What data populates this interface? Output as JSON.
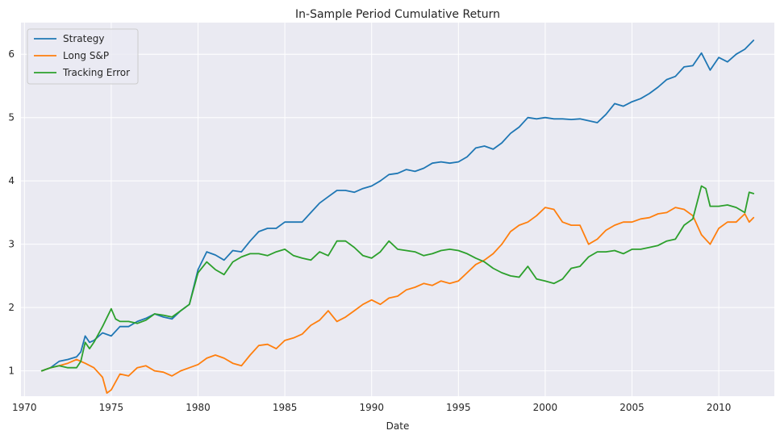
{
  "chart_data": {
    "type": "line",
    "title": "In-Sample Period Cumulative Return",
    "xlabel": "Date",
    "ylabel": "",
    "xlim": [
      1969.8,
      2013.2
    ],
    "ylim": [
      0.6,
      6.5
    ],
    "x_ticks": [
      1970,
      1975,
      1980,
      1985,
      1990,
      1995,
      2000,
      2005,
      2010
    ],
    "y_ticks": [
      1,
      2,
      3,
      4,
      5,
      6
    ],
    "grid": true,
    "legend_position": "top-left",
    "background_color": "#EAEAF2",
    "series": [
      {
        "name": "Strategy",
        "color": "#1f77b4",
        "points": [
          [
            1971.0,
            1.0
          ],
          [
            1971.5,
            1.05
          ],
          [
            1972.0,
            1.15
          ],
          [
            1972.5,
            1.18
          ],
          [
            1973.0,
            1.22
          ],
          [
            1973.25,
            1.3
          ],
          [
            1973.5,
            1.55
          ],
          [
            1973.75,
            1.45
          ],
          [
            1974.0,
            1.48
          ],
          [
            1974.5,
            1.6
          ],
          [
            1975.0,
            1.55
          ],
          [
            1975.5,
            1.7
          ],
          [
            1976.0,
            1.7
          ],
          [
            1976.5,
            1.78
          ],
          [
            1977.0,
            1.83
          ],
          [
            1977.5,
            1.9
          ],
          [
            1978.0,
            1.85
          ],
          [
            1978.5,
            1.82
          ],
          [
            1979.0,
            1.95
          ],
          [
            1979.5,
            2.05
          ],
          [
            1980.0,
            2.6
          ],
          [
            1980.5,
            2.88
          ],
          [
            1981.0,
            2.83
          ],
          [
            1981.5,
            2.75
          ],
          [
            1982.0,
            2.9
          ],
          [
            1982.5,
            2.88
          ],
          [
            1983.0,
            3.05
          ],
          [
            1983.5,
            3.2
          ],
          [
            1984.0,
            3.25
          ],
          [
            1984.5,
            3.25
          ],
          [
            1985.0,
            3.35
          ],
          [
            1985.5,
            3.35
          ],
          [
            1986.0,
            3.35
          ],
          [
            1986.5,
            3.5
          ],
          [
            1987.0,
            3.65
          ],
          [
            1987.5,
            3.75
          ],
          [
            1988.0,
            3.85
          ],
          [
            1988.5,
            3.85
          ],
          [
            1989.0,
            3.82
          ],
          [
            1989.5,
            3.88
          ],
          [
            1990.0,
            3.92
          ],
          [
            1990.5,
            4.0
          ],
          [
            1991.0,
            4.1
          ],
          [
            1991.5,
            4.12
          ],
          [
            1992.0,
            4.18
          ],
          [
            1992.5,
            4.15
          ],
          [
            1993.0,
            4.2
          ],
          [
            1993.5,
            4.28
          ],
          [
            1994.0,
            4.3
          ],
          [
            1994.5,
            4.28
          ],
          [
            1995.0,
            4.3
          ],
          [
            1995.5,
            4.38
          ],
          [
            1996.0,
            4.52
          ],
          [
            1996.5,
            4.55
          ],
          [
            1997.0,
            4.5
          ],
          [
            1997.5,
            4.6
          ],
          [
            1998.0,
            4.75
          ],
          [
            1998.5,
            4.85
          ],
          [
            1999.0,
            5.0
          ],
          [
            1999.5,
            4.98
          ],
          [
            2000.0,
            5.0
          ],
          [
            2000.5,
            4.98
          ],
          [
            2001.0,
            4.98
          ],
          [
            2001.5,
            4.97
          ],
          [
            2002.0,
            4.98
          ],
          [
            2002.5,
            4.95
          ],
          [
            2003.0,
            4.92
          ],
          [
            2003.5,
            5.05
          ],
          [
            2004.0,
            5.22
          ],
          [
            2004.5,
            5.18
          ],
          [
            2005.0,
            5.25
          ],
          [
            2005.5,
            5.3
          ],
          [
            2006.0,
            5.38
          ],
          [
            2006.5,
            5.48
          ],
          [
            2007.0,
            5.6
          ],
          [
            2007.5,
            5.65
          ],
          [
            2008.0,
            5.8
          ],
          [
            2008.5,
            5.82
          ],
          [
            2009.0,
            6.02
          ],
          [
            2009.5,
            5.75
          ],
          [
            2010.0,
            5.95
          ],
          [
            2010.5,
            5.88
          ],
          [
            2011.0,
            6.0
          ],
          [
            2011.5,
            6.08
          ],
          [
            2012.0,
            6.22
          ]
        ]
      },
      {
        "name": "Long S&P",
        "color": "#ff7f0e",
        "points": [
          [
            1971.0,
            1.0
          ],
          [
            1971.5,
            1.05
          ],
          [
            1972.0,
            1.08
          ],
          [
            1972.5,
            1.12
          ],
          [
            1973.0,
            1.18
          ],
          [
            1973.5,
            1.12
          ],
          [
            1974.0,
            1.05
          ],
          [
            1974.5,
            0.9
          ],
          [
            1974.75,
            0.65
          ],
          [
            1975.0,
            0.7
          ],
          [
            1975.5,
            0.95
          ],
          [
            1976.0,
            0.92
          ],
          [
            1976.5,
            1.05
          ],
          [
            1977.0,
            1.08
          ],
          [
            1977.5,
            1.0
          ],
          [
            1978.0,
            0.98
          ],
          [
            1978.5,
            0.92
          ],
          [
            1979.0,
            1.0
          ],
          [
            1979.5,
            1.05
          ],
          [
            1980.0,
            1.1
          ],
          [
            1980.5,
            1.2
          ],
          [
            1981.0,
            1.25
          ],
          [
            1981.5,
            1.2
          ],
          [
            1982.0,
            1.12
          ],
          [
            1982.5,
            1.08
          ],
          [
            1983.0,
            1.25
          ],
          [
            1983.5,
            1.4
          ],
          [
            1984.0,
            1.42
          ],
          [
            1984.5,
            1.35
          ],
          [
            1985.0,
            1.48
          ],
          [
            1985.5,
            1.52
          ],
          [
            1986.0,
            1.58
          ],
          [
            1986.5,
            1.72
          ],
          [
            1987.0,
            1.8
          ],
          [
            1987.5,
            1.95
          ],
          [
            1988.0,
            1.78
          ],
          [
            1988.5,
            1.85
          ],
          [
            1989.0,
            1.95
          ],
          [
            1989.5,
            2.05
          ],
          [
            1990.0,
            2.12
          ],
          [
            1990.5,
            2.05
          ],
          [
            1991.0,
            2.15
          ],
          [
            1991.5,
            2.18
          ],
          [
            1992.0,
            2.28
          ],
          [
            1992.5,
            2.32
          ],
          [
            1993.0,
            2.38
          ],
          [
            1993.5,
            2.35
          ],
          [
            1994.0,
            2.42
          ],
          [
            1994.5,
            2.38
          ],
          [
            1995.0,
            2.42
          ],
          [
            1995.5,
            2.55
          ],
          [
            1996.0,
            2.68
          ],
          [
            1996.5,
            2.75
          ],
          [
            1997.0,
            2.85
          ],
          [
            1997.5,
            3.0
          ],
          [
            1998.0,
            3.2
          ],
          [
            1998.5,
            3.3
          ],
          [
            1999.0,
            3.35
          ],
          [
            1999.5,
            3.45
          ],
          [
            2000.0,
            3.58
          ],
          [
            2000.5,
            3.55
          ],
          [
            2001.0,
            3.35
          ],
          [
            2001.5,
            3.3
          ],
          [
            2002.0,
            3.3
          ],
          [
            2002.5,
            3.0
          ],
          [
            2003.0,
            3.08
          ],
          [
            2003.5,
            3.22
          ],
          [
            2004.0,
            3.3
          ],
          [
            2004.5,
            3.35
          ],
          [
            2005.0,
            3.35
          ],
          [
            2005.5,
            3.4
          ],
          [
            2006.0,
            3.42
          ],
          [
            2006.5,
            3.48
          ],
          [
            2007.0,
            3.5
          ],
          [
            2007.5,
            3.58
          ],
          [
            2008.0,
            3.55
          ],
          [
            2008.5,
            3.45
          ],
          [
            2009.0,
            3.15
          ],
          [
            2009.5,
            3.0
          ],
          [
            2010.0,
            3.25
          ],
          [
            2010.5,
            3.35
          ],
          [
            2011.0,
            3.35
          ],
          [
            2011.5,
            3.48
          ],
          [
            2011.75,
            3.35
          ],
          [
            2012.0,
            3.42
          ]
        ]
      },
      {
        "name": "Tracking Error",
        "color": "#2ca02c",
        "points": [
          [
            1971.0,
            1.0
          ],
          [
            1971.5,
            1.05
          ],
          [
            1972.0,
            1.08
          ],
          [
            1972.5,
            1.05
          ],
          [
            1973.0,
            1.05
          ],
          [
            1973.25,
            1.15
          ],
          [
            1973.5,
            1.45
          ],
          [
            1973.75,
            1.35
          ],
          [
            1974.0,
            1.45
          ],
          [
            1974.5,
            1.7
          ],
          [
            1975.0,
            1.98
          ],
          [
            1975.25,
            1.82
          ],
          [
            1975.5,
            1.78
          ],
          [
            1976.0,
            1.78
          ],
          [
            1976.5,
            1.75
          ],
          [
            1977.0,
            1.8
          ],
          [
            1977.5,
            1.9
          ],
          [
            1978.0,
            1.88
          ],
          [
            1978.5,
            1.85
          ],
          [
            1979.0,
            1.95
          ],
          [
            1979.5,
            2.05
          ],
          [
            1980.0,
            2.55
          ],
          [
            1980.5,
            2.72
          ],
          [
            1981.0,
            2.6
          ],
          [
            1981.5,
            2.52
          ],
          [
            1982.0,
            2.72
          ],
          [
            1982.5,
            2.8
          ],
          [
            1983.0,
            2.85
          ],
          [
            1983.5,
            2.85
          ],
          [
            1984.0,
            2.82
          ],
          [
            1984.5,
            2.88
          ],
          [
            1985.0,
            2.92
          ],
          [
            1985.5,
            2.82
          ],
          [
            1986.0,
            2.78
          ],
          [
            1986.5,
            2.75
          ],
          [
            1987.0,
            2.88
          ],
          [
            1987.5,
            2.82
          ],
          [
            1988.0,
            3.05
          ],
          [
            1988.5,
            3.05
          ],
          [
            1989.0,
            2.95
          ],
          [
            1989.5,
            2.82
          ],
          [
            1990.0,
            2.78
          ],
          [
            1990.5,
            2.88
          ],
          [
            1991.0,
            3.05
          ],
          [
            1991.5,
            2.92
          ],
          [
            1992.0,
            2.9
          ],
          [
            1992.5,
            2.88
          ],
          [
            1993.0,
            2.82
          ],
          [
            1993.5,
            2.85
          ],
          [
            1994.0,
            2.9
          ],
          [
            1994.5,
            2.92
          ],
          [
            1995.0,
            2.9
          ],
          [
            1995.5,
            2.85
          ],
          [
            1996.0,
            2.78
          ],
          [
            1996.5,
            2.72
          ],
          [
            1997.0,
            2.62
          ],
          [
            1997.5,
            2.55
          ],
          [
            1998.0,
            2.5
          ],
          [
            1998.5,
            2.48
          ],
          [
            1999.0,
            2.65
          ],
          [
            1999.5,
            2.45
          ],
          [
            2000.0,
            2.42
          ],
          [
            2000.5,
            2.38
          ],
          [
            2001.0,
            2.45
          ],
          [
            2001.5,
            2.62
          ],
          [
            2002.0,
            2.65
          ],
          [
            2002.5,
            2.8
          ],
          [
            2003.0,
            2.88
          ],
          [
            2003.5,
            2.88
          ],
          [
            2004.0,
            2.9
          ],
          [
            2004.5,
            2.85
          ],
          [
            2005.0,
            2.92
          ],
          [
            2005.5,
            2.92
          ],
          [
            2006.0,
            2.95
          ],
          [
            2006.5,
            2.98
          ],
          [
            2007.0,
            3.05
          ],
          [
            2007.5,
            3.08
          ],
          [
            2008.0,
            3.3
          ],
          [
            2008.5,
            3.4
          ],
          [
            2009.0,
            3.92
          ],
          [
            2009.25,
            3.88
          ],
          [
            2009.5,
            3.6
          ],
          [
            2010.0,
            3.6
          ],
          [
            2010.5,
            3.62
          ],
          [
            2011.0,
            3.58
          ],
          [
            2011.5,
            3.5
          ],
          [
            2011.75,
            3.82
          ],
          [
            2012.0,
            3.8
          ]
        ]
      }
    ]
  }
}
